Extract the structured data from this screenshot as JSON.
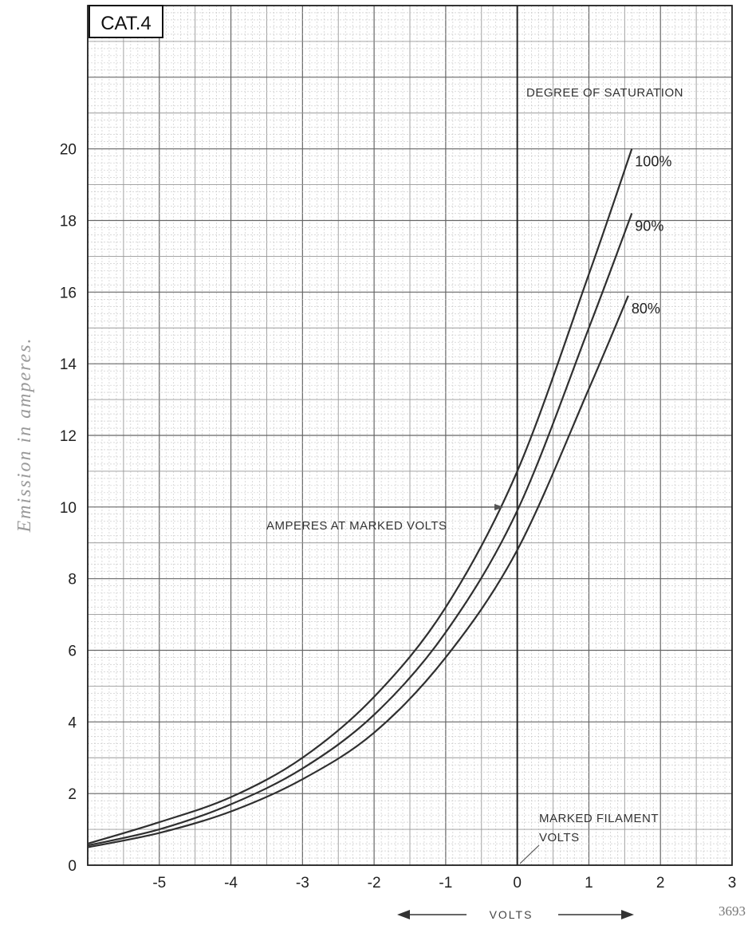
{
  "chart_data": {
    "type": "line",
    "panel_title": "CAT.4",
    "ylabel": "Emission in amperes.",
    "xlabel": "VOLTS",
    "figure_number": "3693",
    "legend_title": "DEGREE OF SATURATION",
    "xlim": [
      -6,
      3
    ],
    "ylim": [
      0,
      24
    ],
    "x_ticks": [
      -5,
      -4,
      -3,
      -2,
      -1,
      0,
      1,
      2,
      3
    ],
    "x_tick_labels": [
      "-5",
      "-4",
      "-3",
      "-2",
      "-1",
      "0",
      "1",
      "2",
      "3"
    ],
    "y_ticks": [
      0,
      2,
      4,
      6,
      8,
      10,
      12,
      14,
      16,
      18,
      20
    ],
    "y_tick_labels": [
      "0",
      "2",
      "4",
      "6",
      "8",
      "10",
      "12",
      "14",
      "16",
      "18",
      "20"
    ],
    "grid": true,
    "series": [
      {
        "name": "100%",
        "color": "#2f2f2f",
        "x": [
          -6,
          -5,
          -4,
          -3,
          -2,
          -1,
          0,
          1,
          1.6
        ],
        "y": [
          0.6,
          1.2,
          1.9,
          3.0,
          4.7,
          7.2,
          11.0,
          16.5,
          20.0
        ]
      },
      {
        "name": "90%",
        "color": "#2f2f2f",
        "x": [
          -6,
          -5,
          -4,
          -3,
          -2,
          -1,
          0,
          1,
          1.6
        ],
        "y": [
          0.55,
          1.0,
          1.7,
          2.7,
          4.2,
          6.5,
          9.9,
          15.0,
          18.2
        ]
      },
      {
        "name": "80%",
        "color": "#2f2f2f",
        "x": [
          -6,
          -5,
          -4,
          -3,
          -2,
          -1,
          0,
          1,
          1.55
        ],
        "y": [
          0.5,
          0.9,
          1.5,
          2.4,
          3.7,
          5.8,
          8.8,
          13.3,
          15.9
        ]
      }
    ],
    "annotations": [
      {
        "text": "AMPERES AT MARKED VOLTS",
        "points_to": {
          "x": 0,
          "y": 10
        }
      },
      {
        "text": "MARKED FILAMENT",
        "points_to": {
          "x": 0,
          "y": 0
        }
      },
      {
        "text": "VOLTS",
        "points_to": {
          "x": 0,
          "y": 0
        }
      }
    ]
  }
}
